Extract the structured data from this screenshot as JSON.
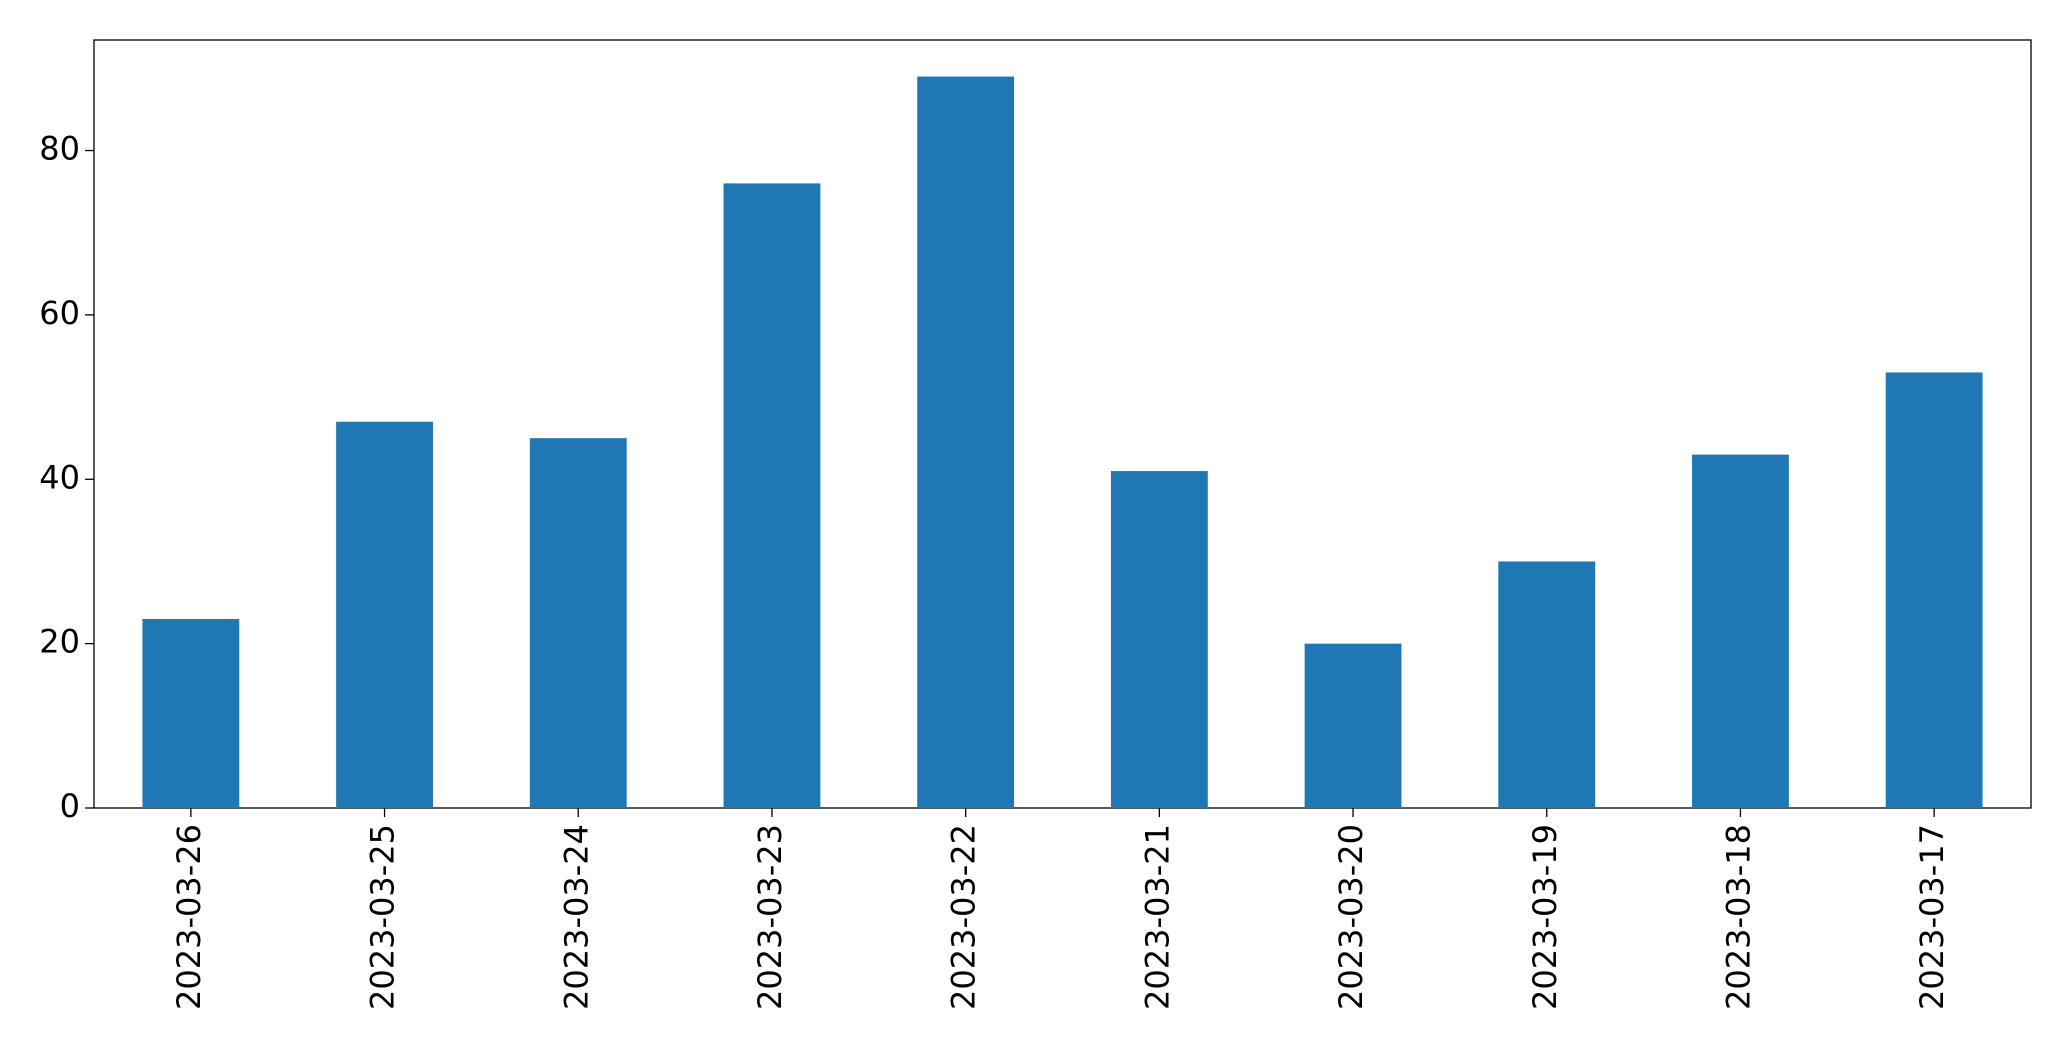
{
  "chart_data": {
    "type": "bar",
    "categories": [
      "2023-03-26",
      "2023-03-25",
      "2023-03-24",
      "2023-03-23",
      "2023-03-22",
      "2023-03-21",
      "2023-03-20",
      "2023-03-19",
      "2023-03-18",
      "2023-03-17"
    ],
    "values": [
      23,
      47,
      45,
      76,
      89,
      41,
      20,
      30,
      43,
      53
    ],
    "color": "#1f77b4",
    "ylim": [
      0,
      93.45
    ],
    "yticks": [
      0,
      20,
      40,
      60,
      80
    ],
    "grid": false
  }
}
